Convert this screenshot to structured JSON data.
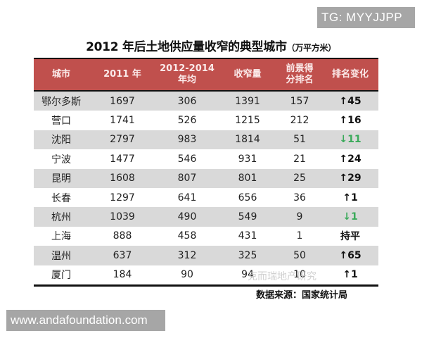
{
  "overlay": {
    "tag": "TG: MYYJJPP",
    "url": "www.andafoundation.com"
  },
  "header": {
    "title": "2012 年后土地供应量收窄的典型城市",
    "unit": "（万平方米）"
  },
  "table": {
    "columns": [
      "城市",
      "2011 年",
      "2012-2014\n年均",
      "收窄量",
      "前景得\n分排名",
      "排名变化"
    ],
    "column_lines": [
      [
        "城市"
      ],
      [
        "2011 年"
      ],
      [
        "2012-2014",
        "年均"
      ],
      [
        "收窄量"
      ],
      [
        "前景得",
        "分排名"
      ],
      [
        "排名变化"
      ]
    ],
    "rows": [
      {
        "city": "鄂尔多斯",
        "y2011": "1697",
        "avg": "306",
        "narrow": "1391",
        "rank": "157",
        "change": "↑45",
        "dir": "up"
      },
      {
        "city": "营口",
        "y2011": "1741",
        "avg": "526",
        "narrow": "1215",
        "rank": "212",
        "change": "↑16",
        "dir": "up"
      },
      {
        "city": "沈阳",
        "y2011": "2797",
        "avg": "983",
        "narrow": "1814",
        "rank": "51",
        "change": "↓11",
        "dir": "down"
      },
      {
        "city": "宁波",
        "y2011": "1477",
        "avg": "546",
        "narrow": "931",
        "rank": "21",
        "change": "↑24",
        "dir": "up"
      },
      {
        "city": "昆明",
        "y2011": "1608",
        "avg": "807",
        "narrow": "801",
        "rank": "25",
        "change": "↑29",
        "dir": "up"
      },
      {
        "city": "长春",
        "y2011": "1297",
        "avg": "641",
        "narrow": "656",
        "rank": "36",
        "change": "↑1",
        "dir": "up"
      },
      {
        "city": "杭州",
        "y2011": "1039",
        "avg": "490",
        "narrow": "549",
        "rank": "9",
        "change": "↓1",
        "dir": "down"
      },
      {
        "city": "上海",
        "y2011": "888",
        "avg": "458",
        "narrow": "431",
        "rank": "1",
        "change": "持平",
        "dir": "flat"
      },
      {
        "city": "温州",
        "y2011": "637",
        "avg": "312",
        "narrow": "325",
        "rank": "50",
        "change": "↑65",
        "dir": "up"
      },
      {
        "city": "厦门",
        "y2011": "184",
        "avg": "90",
        "narrow": "94",
        "rank": "10",
        "change": "↑1",
        "dir": "up"
      }
    ]
  },
  "footer": {
    "watermark": "克而瑞地产研究",
    "source": "数据来源：国家统计局"
  },
  "colors": {
    "header_red": "#c0504d",
    "stripe_gray": "#d9d9d9",
    "down_green": "#3aaa5a",
    "overlay_gray": "#a6a6a6"
  }
}
